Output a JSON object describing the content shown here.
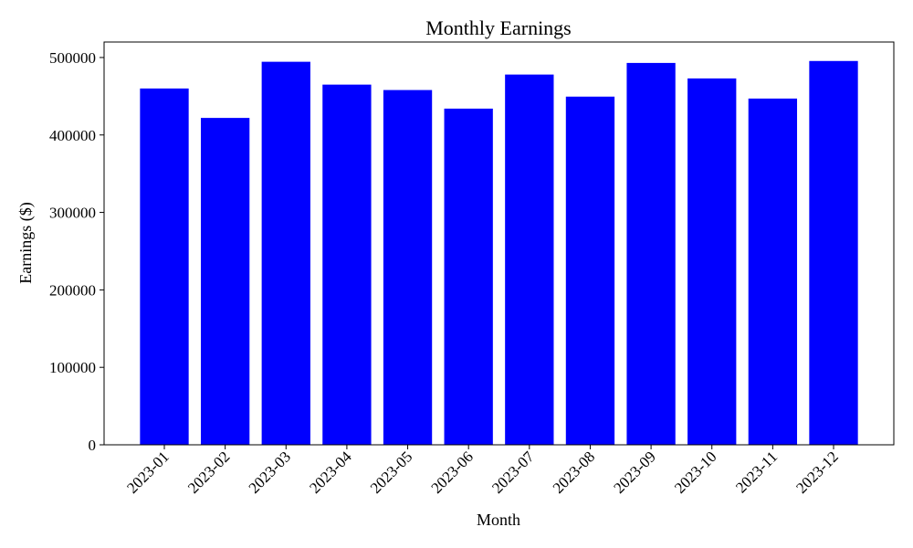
{
  "chart_data": {
    "type": "bar",
    "title": "Monthly Earnings",
    "xlabel": "Month",
    "ylabel": "Earnings ($)",
    "categories": [
      "2023-01",
      "2023-02",
      "2023-03",
      "2023-04",
      "2023-05",
      "2023-06",
      "2023-07",
      "2023-08",
      "2023-09",
      "2023-10",
      "2023-11",
      "2023-12"
    ],
    "values": [
      460000,
      422000,
      494500,
      465000,
      458000,
      434000,
      478000,
      449500,
      493000,
      473000,
      447000,
      495500
    ],
    "ylim": [
      0,
      520000
    ],
    "yticks": [
      0,
      100000,
      200000,
      300000,
      400000,
      500000
    ],
    "ytick_labels": [
      "0",
      "100000",
      "200000",
      "300000",
      "400000",
      "500000"
    ],
    "bar_color": "#0000ff",
    "grid": false,
    "legend": false
  }
}
